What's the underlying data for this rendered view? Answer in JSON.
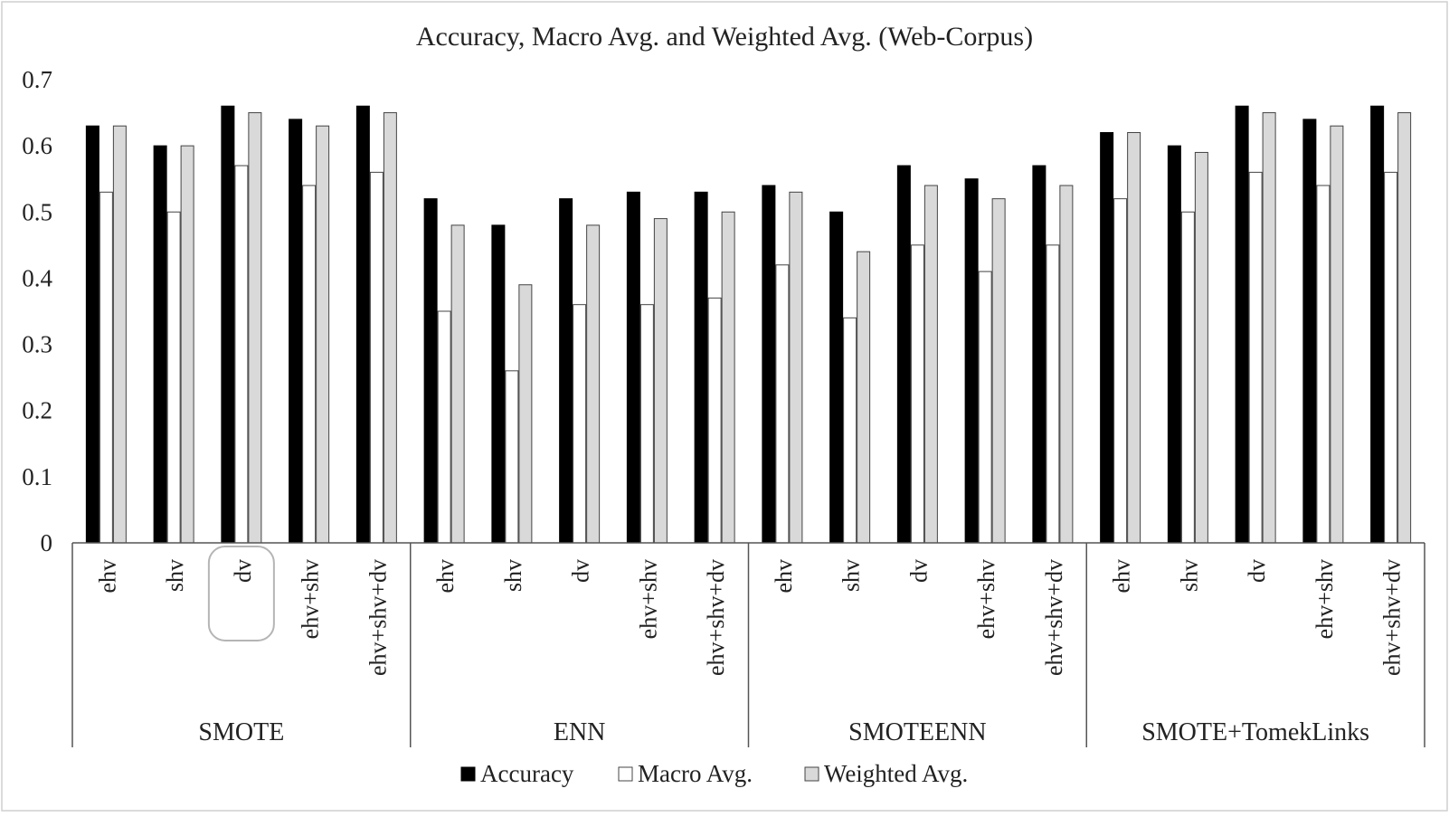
{
  "chart_data": {
    "type": "bar",
    "title": "Accuracy, Macro Avg. and Weighted Avg. (Web-Corpus)",
    "xlabel": "",
    "ylabel": "",
    "ylim": [
      0,
      0.7
    ],
    "yticks": [
      "0",
      "0.1",
      "0.2",
      "0.3",
      "0.4",
      "0.5",
      "0.6",
      "0.7"
    ],
    "grid": false,
    "legend_position": "bottom",
    "groups": [
      {
        "name": "SMOTE",
        "categories": [
          "ehv",
          "shv",
          "dv",
          "ehv+shv",
          "ehv+shv+dv"
        ]
      },
      {
        "name": "ENN",
        "categories": [
          "ehv",
          "shv",
          "dv",
          "ehv+shv",
          "ehv+shv+dv"
        ]
      },
      {
        "name": "SMOTEENN",
        "categories": [
          "ehv",
          "shv",
          "dv",
          "ehv+shv",
          "ehv+shv+dv"
        ]
      },
      {
        "name": "SMOTE+TomekLinks",
        "categories": [
          "ehv",
          "shv",
          "dv",
          "ehv+shv",
          "ehv+shv+dv"
        ]
      }
    ],
    "series": [
      {
        "name": "Accuracy",
        "color": "#000000",
        "values": [
          0.63,
          0.6,
          0.66,
          0.64,
          0.66,
          0.52,
          0.48,
          0.52,
          0.53,
          0.53,
          0.54,
          0.5,
          0.57,
          0.55,
          0.57,
          0.62,
          0.6,
          0.66,
          0.64,
          0.66
        ]
      },
      {
        "name": "Macro Avg.",
        "color": "#ffffff",
        "values": [
          0.53,
          0.5,
          0.57,
          0.54,
          0.56,
          0.35,
          0.26,
          0.36,
          0.36,
          0.37,
          0.42,
          0.34,
          0.45,
          0.41,
          0.45,
          0.52,
          0.5,
          0.56,
          0.54,
          0.56
        ]
      },
      {
        "name": "Weighted Avg.",
        "color": "#d9d9d9",
        "values": [
          0.63,
          0.6,
          0.65,
          0.63,
          0.65,
          0.48,
          0.39,
          0.48,
          0.49,
          0.5,
          0.53,
          0.44,
          0.54,
          0.52,
          0.54,
          0.62,
          0.59,
          0.65,
          0.63,
          0.65
        ]
      }
    ],
    "highlight": {
      "group": "SMOTE",
      "category": "dv"
    }
  }
}
